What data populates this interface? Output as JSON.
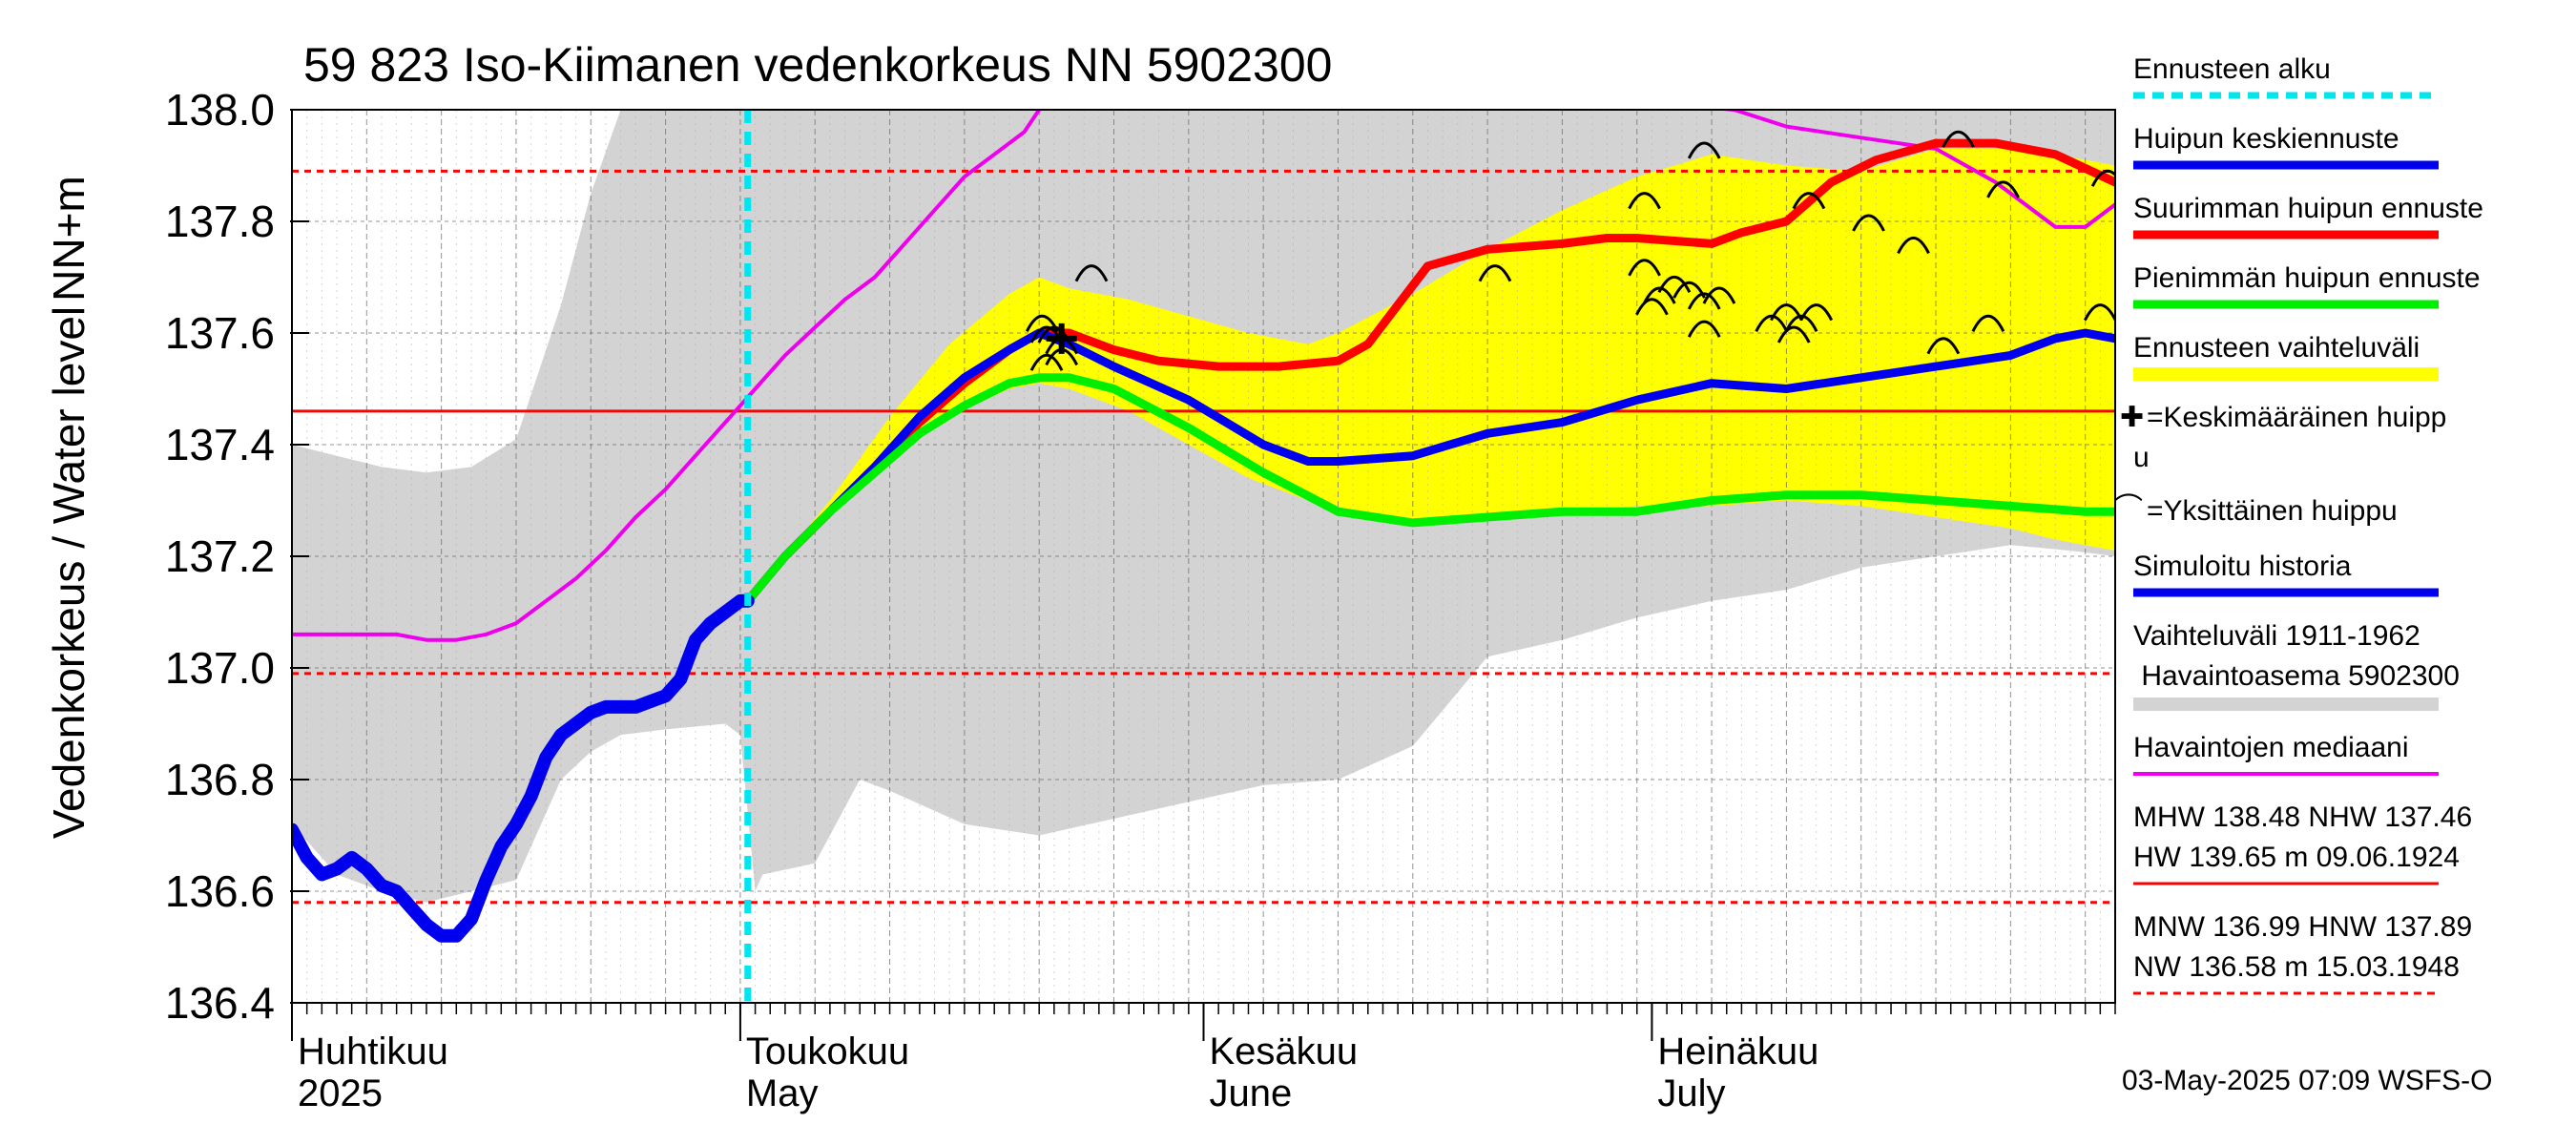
{
  "chart_data": {
    "type": "line",
    "title": "59 823 Iso-Kiimanen vedenkorkeus NN 5902300",
    "ylabel_main": "Vedenkorkeus / Water level",
    "ylabel_unit": "NN+m",
    "ylim": [
      136.4,
      138.0
    ],
    "yticks": [
      136.4,
      136.6,
      136.8,
      137.0,
      137.2,
      137.4,
      137.6,
      137.8,
      138.0
    ],
    "ytick_labels": [
      "136.4",
      "136.6",
      "136.8",
      "137.0",
      "137.2",
      "137.4",
      "137.6",
      "137.8",
      "138.0"
    ],
    "xlim_day": [
      0,
      122
    ],
    "month_labels": [
      {
        "day": 0,
        "line1": "Huhtikuu",
        "line2": "2025"
      },
      {
        "day": 30,
        "line1": "Toukokuu",
        "line2": "May"
      },
      {
        "day": 61,
        "line1": "Kesäkuu",
        "line2": "June"
      },
      {
        "day": 91,
        "line1": "Heinäkuu",
        "line2": "July"
      }
    ],
    "forecast_start_day": 30.5,
    "reference_lines": [
      {
        "name": "HNW",
        "value": 137.89,
        "style": "dashed"
      },
      {
        "name": "MHW",
        "value": 138.48,
        "style": "dashed"
      },
      {
        "name": "NHW",
        "value": 137.46,
        "style": "solid"
      },
      {
        "name": "MNW",
        "value": 136.99,
        "style": "dashed"
      },
      {
        "name": "NW",
        "value": 136.58,
        "style": "dashed"
      }
    ],
    "historical_band": {
      "name": "Vaihteluväli 1911-1962 Havaintoasema 5902300",
      "color": "#d3d3d3",
      "x": [
        0,
        3,
        6,
        9,
        12,
        15,
        18,
        20,
        22,
        25,
        29,
        30,
        31,
        31.5,
        35,
        38,
        40,
        45,
        50,
        55,
        60,
        65,
        70,
        75,
        80,
        85,
        90,
        95,
        100,
        105,
        110,
        115,
        119,
        122
      ],
      "upper": [
        137.4,
        137.38,
        137.36,
        137.35,
        137.36,
        137.41,
        137.65,
        137.85,
        138.0,
        138.0,
        138.0,
        138.0,
        138.0,
        138.0,
        138.0,
        138.0,
        138.0,
        138.0,
        138.0,
        138.0,
        138.0,
        138.0,
        138.0,
        138.0,
        138.0,
        138.0,
        138.0,
        138.0,
        138.0,
        138.0,
        138.0,
        138.0,
        138.0,
        138.0
      ],
      "lower": [
        136.72,
        136.63,
        136.6,
        136.58,
        136.6,
        136.62,
        136.8,
        136.85,
        136.88,
        136.89,
        136.9,
        136.88,
        136.6,
        136.63,
        136.65,
        136.8,
        136.78,
        136.72,
        136.7,
        136.73,
        136.76,
        136.79,
        136.8,
        136.86,
        137.02,
        137.05,
        137.09,
        137.12,
        137.14,
        137.18,
        137.2,
        137.22,
        137.21,
        137.2
      ]
    },
    "series": [
      {
        "name": "Ennusteen vaihteluväli",
        "type": "band",
        "color": "#ffff00",
        "x": [
          30.5,
          36,
          40,
          44,
          48,
          50,
          52,
          56,
          60,
          64,
          68,
          70,
          75,
          80,
          85,
          90,
          95,
          100,
          105,
          110,
          115,
          118,
          122
        ],
        "upper": [
          137.12,
          137.3,
          137.45,
          137.58,
          137.67,
          137.7,
          137.68,
          137.66,
          137.63,
          137.6,
          137.58,
          137.6,
          137.67,
          137.75,
          137.82,
          137.88,
          137.92,
          137.9,
          137.89,
          137.93,
          137.93,
          137.92,
          137.9
        ],
        "lower": [
          137.12,
          137.28,
          137.38,
          137.45,
          137.5,
          137.51,
          137.5,
          137.46,
          137.4,
          137.34,
          137.3,
          137.28,
          137.26,
          137.27,
          137.28,
          137.29,
          137.29,
          137.3,
          137.29,
          137.27,
          137.25,
          137.23,
          137.21
        ]
      },
      {
        "name": "Havaintojen mediaani",
        "color": "#ee00ee",
        "x": [
          0,
          3,
          5,
          7,
          9,
          11,
          13,
          15,
          17,
          19,
          21,
          23,
          25,
          27,
          29,
          31,
          33,
          35,
          37,
          39,
          41,
          43,
          45,
          47,
          49,
          50,
          51,
          53,
          96.5,
          100,
          105,
          110,
          114,
          116,
          118,
          120,
          122
        ],
        "y": [
          137.06,
          137.06,
          137.06,
          137.06,
          137.05,
          137.05,
          137.06,
          137.08,
          137.12,
          137.16,
          137.21,
          137.27,
          137.32,
          137.38,
          137.44,
          137.5,
          137.56,
          137.61,
          137.66,
          137.7,
          137.76,
          137.82,
          137.88,
          137.92,
          137.96,
          138.0,
          138.02,
          138.1,
          138.0,
          137.97,
          137.95,
          137.93,
          137.87,
          137.83,
          137.79,
          137.79,
          137.83
        ]
      },
      {
        "name": "Suurimman huipun ennuste",
        "color": "#ff0000",
        "x": [
          30.5,
          33,
          36,
          39,
          42,
          45,
          48,
          50,
          52,
          55,
          58,
          62,
          66,
          70,
          72,
          74,
          76,
          80,
          85,
          88,
          90,
          95,
          97,
          100,
          103,
          106,
          110,
          114,
          118,
          122
        ],
        "y": [
          137.12,
          137.2,
          137.28,
          137.36,
          137.44,
          137.51,
          137.57,
          137.6,
          137.6,
          137.57,
          137.55,
          137.54,
          137.54,
          137.55,
          137.58,
          137.65,
          137.72,
          137.75,
          137.76,
          137.77,
          137.77,
          137.76,
          137.78,
          137.8,
          137.87,
          137.91,
          137.94,
          137.94,
          137.92,
          137.87
        ]
      },
      {
        "name": "Huipun keskiennuste",
        "color": "#0000ee",
        "x": [
          30.5,
          33,
          36,
          39,
          42,
          45,
          48,
          50,
          52,
          55,
          60,
          65,
          68,
          70,
          75,
          80,
          85,
          90,
          95,
          100,
          105,
          110,
          115,
          118,
          120,
          122
        ],
        "y": [
          137.12,
          137.2,
          137.28,
          137.36,
          137.45,
          137.52,
          137.57,
          137.6,
          137.58,
          137.54,
          137.48,
          137.4,
          137.37,
          137.37,
          137.38,
          137.42,
          137.44,
          137.48,
          137.51,
          137.5,
          137.52,
          137.54,
          137.56,
          137.59,
          137.6,
          137.59
        ]
      },
      {
        "name": "Pienimmän huipun ennuste",
        "color": "#00ee00",
        "x": [
          30.5,
          33,
          36,
          39,
          42,
          45,
          48,
          50,
          52,
          55,
          60,
          65,
          70,
          75,
          80,
          85,
          90,
          95,
          100,
          105,
          110,
          115,
          120,
          122
        ],
        "y": [
          137.12,
          137.2,
          137.28,
          137.35,
          137.42,
          137.47,
          137.51,
          137.52,
          137.52,
          137.5,
          137.43,
          137.35,
          137.28,
          137.26,
          137.27,
          137.28,
          137.28,
          137.3,
          137.31,
          137.31,
          137.3,
          137.29,
          137.28,
          137.28
        ]
      },
      {
        "name": "Simuloitu historia",
        "color": "#0000ee",
        "x": [
          0,
          1,
          2,
          3,
          4,
          5,
          6,
          7,
          8,
          9,
          10,
          11,
          12,
          13,
          14,
          15,
          16,
          17,
          18,
          19,
          20,
          21,
          22,
          23,
          24,
          25,
          26,
          27,
          28,
          29,
          30,
          30.5
        ],
        "y": [
          136.71,
          136.66,
          136.63,
          136.64,
          136.66,
          136.64,
          136.61,
          136.6,
          136.57,
          136.54,
          136.52,
          136.52,
          136.55,
          136.62,
          136.68,
          136.72,
          136.77,
          136.84,
          136.88,
          136.9,
          136.92,
          136.93,
          136.93,
          136.93,
          136.94,
          136.95,
          136.98,
          137.05,
          137.08,
          137.1,
          137.12,
          137.12
        ]
      }
    ],
    "peak_markers_individual": [
      {
        "x": 53.5,
        "y": 137.71
      },
      {
        "x": 80.5,
        "y": 137.71
      },
      {
        "x": 90.5,
        "y": 137.84
      },
      {
        "x": 94.5,
        "y": 137.93
      },
      {
        "x": 101.5,
        "y": 137.84
      },
      {
        "x": 105.5,
        "y": 137.8
      },
      {
        "x": 108.5,
        "y": 137.76
      },
      {
        "x": 111.5,
        "y": 137.95
      },
      {
        "x": 114.5,
        "y": 137.86
      },
      {
        "x": 121.5,
        "y": 137.88
      },
      {
        "x": 90.5,
        "y": 137.72
      },
      {
        "x": 91.5,
        "y": 137.67
      },
      {
        "x": 92.5,
        "y": 137.69
      },
      {
        "x": 93.5,
        "y": 137.68
      },
      {
        "x": 94.5,
        "y": 137.66
      },
      {
        "x": 95.5,
        "y": 137.67
      },
      {
        "x": 91,
        "y": 137.65
      },
      {
        "x": 94.5,
        "y": 137.61
      },
      {
        "x": 99,
        "y": 137.62
      },
      {
        "x": 100,
        "y": 137.64
      },
      {
        "x": 101,
        "y": 137.62
      },
      {
        "x": 102,
        "y": 137.64
      },
      {
        "x": 100.5,
        "y": 137.6
      },
      {
        "x": 110.5,
        "y": 137.58
      },
      {
        "x": 113.5,
        "y": 137.62
      },
      {
        "x": 121,
        "y": 137.64
      },
      {
        "x": 50.5,
        "y": 137.6
      },
      {
        "x": 51.5,
        "y": 137.58
      },
      {
        "x": 50.5,
        "y": 137.55
      },
      {
        "x": 51.5,
        "y": 137.56
      },
      {
        "x": 50.2,
        "y": 137.62
      },
      {
        "x": 51,
        "y": 137.6
      }
    ],
    "peak_marker_average": {
      "x": 51.5,
      "y": 137.59
    }
  },
  "legend": {
    "forecast_start": "Ennusteen alku",
    "mean_peak": "Huipun keskiennuste",
    "max_peak": "Suurimman huipun ennuste",
    "min_peak": "Pienimmän huipun ennuste",
    "forecast_range": "Ennusteen vaihteluväli",
    "avg_peak_symbol": "✚",
    "avg_peak_line1": "=Keskimääräinen huipp",
    "avg_peak_line2": "u",
    "single_peak_symbol": "⌒",
    "single_peak": "=Yksittäinen huippu",
    "sim_history": "Simuloitu historia",
    "hist_range_line1": "Vaihteluväli 1911-1962",
    "hist_range_line2": " Havaintoasema 5902300",
    "median": "Havaintojen mediaani",
    "stats1_line1": "MHW 138.48 NHW 137.46",
    "stats1_line2": "HW 139.65 m 09.06.1924",
    "stats2_line1": "MNW 136.99 HNW 137.89",
    "stats2_line2": "NW 136.58 m 15.03.1948",
    "colors": {
      "forecast_start": "#00e5ee",
      "mean": "#0000ee",
      "max": "#ff0000",
      "min": "#00ee00",
      "range": "#ffff00",
      "hist": "#d3d3d3",
      "median": "#ee00ee",
      "ref": "#ff0000"
    }
  },
  "footer": "03-May-2025 07:09 WSFS-O"
}
